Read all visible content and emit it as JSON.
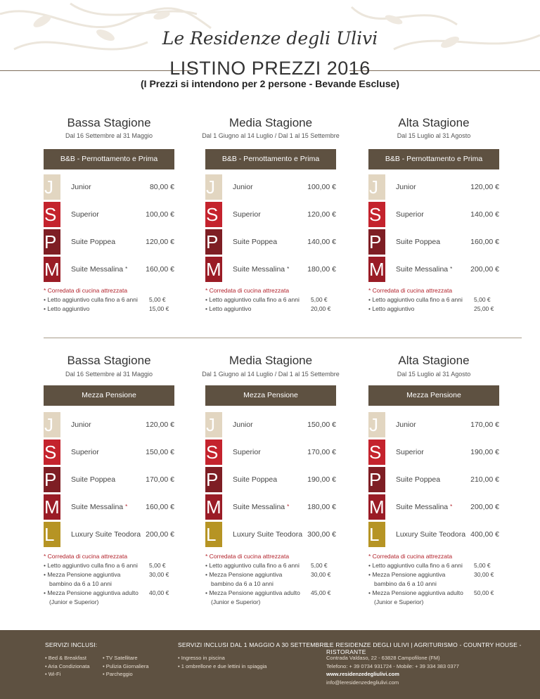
{
  "header": {
    "brand": "Le Residenze degli Ulivi",
    "title": "LISTINO PREZZI 2016",
    "subtitle": "(I Prezzi si intendono per 2 persone - Bevande Escluse)"
  },
  "sections": [
    {
      "columns": [
        {
          "season": "Bassa Stagione",
          "dates": "Dal 16 Settembre al 31 Maggio",
          "band": "B&B - Pernottamento e Prima Colazione",
          "rows": [
            {
              "letter": "J",
              "name": "Junior",
              "price": "80,00 €"
            },
            {
              "letter": "S",
              "name": "Superior",
              "price": "100,00 €"
            },
            {
              "letter": "P",
              "name": "Suite Poppea",
              "price": "120,00 €"
            },
            {
              "letter": "M",
              "name": "Suite Messalina",
              "star": "*",
              "price": "160,00 €"
            }
          ],
          "notes": {
            "red": "* Corredata di cucina attrezzata",
            "items": [
              "• Letto aggiuntivo culla fino a 6 anni",
              "• Letto aggiuntivo"
            ],
            "values": [
              "5,00 €",
              "15,00 €"
            ]
          }
        },
        {
          "season": "Media Stagione",
          "dates": "Dal 1 Giugno al 14 Luglio / Dal 1 al 15 Settembre",
          "band": "B&B - Pernottamento e Prima Colazione",
          "rows": [
            {
              "letter": "J",
              "name": "Junior",
              "price": "100,00 €"
            },
            {
              "letter": "S",
              "name": "Superior",
              "price": "120,00 €"
            },
            {
              "letter": "P",
              "name": "Suite Poppea",
              "price": "140,00 €"
            },
            {
              "letter": "M",
              "name": "Suite Messalina",
              "star": "*",
              "price": "180,00 €"
            }
          ],
          "notes": {
            "red": "* Corredata di cucina attrezzata",
            "items": [
              "• Letto aggiuntivo culla fino a 6 anni",
              "• Letto aggiuntivo"
            ],
            "values": [
              "5,00 €",
              "20,00 €"
            ]
          }
        },
        {
          "season": "Alta Stagione",
          "dates": "Dal 15 Luglio al 31 Agosto",
          "band": "B&B - Pernottamento e Prima Colazione",
          "rows": [
            {
              "letter": "J",
              "name": "Junior",
              "price": "120,00 €"
            },
            {
              "letter": "S",
              "name": "Superior",
              "price": "140,00 €"
            },
            {
              "letter": "P",
              "name": "Suite Poppea",
              "price": "160,00 €"
            },
            {
              "letter": "M",
              "name": "Suite Messalina",
              "star": "*",
              "price": "200,00 €"
            }
          ],
          "notes": {
            "red": "* Corredata di cucina attrezzata",
            "items": [
              "• Letto aggiuntivo culla fino a 6 anni",
              "• Letto aggiuntivo"
            ],
            "values": [
              "5,00 €",
              "25,00 €"
            ]
          }
        }
      ]
    },
    {
      "columns": [
        {
          "season": "Bassa Stagione",
          "dates": "Dal 16 Settembre al 31 Maggio",
          "band": "Mezza Pensione",
          "rows": [
            {
              "letter": "J",
              "name": "Junior",
              "price": "120,00 €"
            },
            {
              "letter": "S",
              "name": "Superior",
              "price": "150,00 €"
            },
            {
              "letter": "P",
              "name": "Suite Poppea",
              "price": "170,00 €"
            },
            {
              "letter": "M",
              "name": "Suite Messalina",
              "star": "*",
              "price": "160,00 €"
            },
            {
              "letter": "L",
              "name": "Luxury Suite Teodora",
              "price": "200,00 €"
            }
          ],
          "notes": {
            "red": "* Corredata di cucina attrezzata",
            "items": [
              "• Letto aggiuntivo culla fino a 6 anni",
              "• Mezza Pensione aggiuntiva",
              "bambino da 6 a 10 anni",
              "• Mezza Pensione aggiuntiva adulto",
              "(Junior e Superior)"
            ],
            "values": [
              "5,00 €",
              "30,00 €",
              "",
              "40,00 €",
              ""
            ]
          }
        },
        {
          "season": "Media Stagione",
          "dates": "Dal 1 Giugno al 14 Luglio / Dal 1 al 15 Settembre",
          "band": "Mezza Pensione",
          "rows": [
            {
              "letter": "J",
              "name": "Junior",
              "price": "150,00 €"
            },
            {
              "letter": "S",
              "name": "Superior",
              "price": "170,00 €"
            },
            {
              "letter": "P",
              "name": "Suite Poppea",
              "price": "190,00 €"
            },
            {
              "letter": "M",
              "name": "Suite Messalina",
              "star": "*",
              "price": "180,00 €"
            },
            {
              "letter": "L",
              "name": "Luxury Suite Teodora",
              "price": "300,00 €"
            }
          ],
          "notes": {
            "red": "* Corredata di cucina attrezzata",
            "items": [
              "• Letto aggiuntivo culla fino a 6 anni",
              "• Mezza Pensione aggiuntiva",
              "bambino da 6 a 10 anni",
              "• Mezza Pensione aggiuntiva adulto",
              "(Junior e Superior)"
            ],
            "values": [
              "5,00 €",
              "30,00 €",
              "",
              "45,00 €",
              ""
            ]
          }
        },
        {
          "season": "Alta Stagione",
          "dates": "Dal 15 Luglio al 31 Agosto",
          "band": "Mezza Pensione",
          "rows": [
            {
              "letter": "J",
              "name": "Junior",
              "price": "170,00 €"
            },
            {
              "letter": "S",
              "name": "Superior",
              "price": "190,00 €"
            },
            {
              "letter": "P",
              "name": "Suite Poppea",
              "price": "210,00 €"
            },
            {
              "letter": "M",
              "name": "Suite Messalina",
              "star": "*",
              "price": "200,00 €"
            },
            {
              "letter": "L",
              "name": "Luxury Suite Teodora",
              "price": "400,00 €"
            }
          ],
          "notes": {
            "red": "* Corredata di cucina attrezzata",
            "items": [
              "• Letto aggiuntivo culla fino a 6 anni",
              "• Mezza Pensione aggiuntiva",
              "bambino da 6 a 10 anni",
              "• Mezza Pensione aggiuntiva adulto",
              "(Junior e Superior)"
            ],
            "values": [
              "5,00 €",
              "30,00 €",
              "",
              "50,00 €",
              ""
            ]
          }
        }
      ]
    }
  ],
  "footer": {
    "services_title": "SERVIZI INCLUSI:",
    "services_a": [
      "• Bed & Breakfast",
      "• Aria Condizionata",
      "• Wi-Fi"
    ],
    "services_b": [
      "• TV Satellitare",
      "• Pulizia Giornaliera",
      "• Parcheggio"
    ],
    "summer_title": "SERVIZI INCLUSI DAL 1 MAGGIO A 30 SETTEMBRE:",
    "summer_items": [
      "• Ingresso in piscina",
      "• 1 ombrellone e due lettini in spiaggia"
    ],
    "contact_title": "LE RESIDENZE DEGLI ULIVI | AGRITURISMO - COUNTRY HOUSE  - RISTORANTE",
    "contact_lines": [
      "Contrada Valdaso, 22 - 63828 Campofilone (FM)",
      "Telefono: + 39 0734 931724  - Mobile: + 39 334 383 0377",
      "www.residenzedegliulivi.com",
      "info@leresidenzedegliulivi.com"
    ]
  },
  "colors": {
    "band": "#5e5141",
    "J": "#e2d6c1",
    "S": "#c4232d",
    "P": "#7e1e24",
    "M": "#9a1c26",
    "L": "#b69424"
  }
}
